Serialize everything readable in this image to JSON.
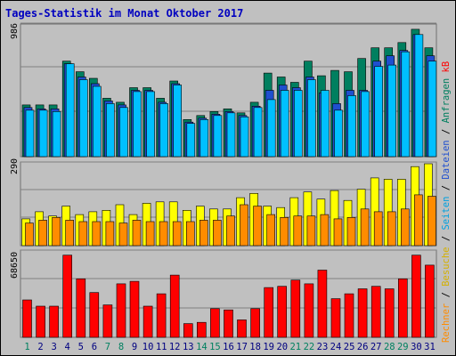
{
  "chart_data": {
    "type": "bar",
    "title": "Tages-Statistik im Monat Oktober 2017",
    "days": [
      "1",
      "2",
      "3",
      "4",
      "5",
      "6",
      "7",
      "8",
      "9",
      "10",
      "11",
      "12",
      "13",
      "14",
      "15",
      "16",
      "17",
      "18",
      "19",
      "20",
      "21",
      "22",
      "23",
      "24",
      "25",
      "26",
      "27",
      "28",
      "29",
      "30",
      "31"
    ],
    "weekend_days": [
      "1",
      "7",
      "8",
      "14",
      "15",
      "21",
      "22",
      "28",
      "29"
    ],
    "panels": [
      {
        "max_label": "986",
        "ylim": [
          0,
          986
        ],
        "series": [
          {
            "name": "Anfragen",
            "color": "#007f5f",
            "values": [
              390,
              390,
              390,
              720,
              640,
              590,
              440,
              410,
              520,
              520,
              440,
              570,
              280,
              310,
              340,
              360,
              330,
              410,
              630,
              600,
              560,
              720,
              610,
              650,
              640,
              740,
              820,
              820,
              860,
              960,
              820
            ]
          },
          {
            "name": "Dateien",
            "color": "#1f4fcf",
            "values": [
              370,
              360,
              360,
              700,
              600,
              550,
              420,
              390,
              500,
              500,
              410,
              550,
              260,
              290,
              320,
              340,
              310,
              380,
              500,
              540,
              520,
              600,
              480,
              400,
              500,
              500,
              720,
              760,
              800,
              920,
              760
            ]
          },
          {
            "name": "Seiten",
            "color": "#00c0ff",
            "values": [
              350,
              350,
              340,
              700,
              580,
              530,
              400,
              370,
              490,
              490,
              400,
              540,
              250,
              280,
              310,
              330,
              300,
              370,
              430,
              500,
              500,
              580,
              500,
              350,
              460,
              490,
              680,
              690,
              790,
              920,
              720
            ]
          }
        ]
      },
      {
        "max_label": "290",
        "ylim": [
          0,
          290
        ],
        "series": [
          {
            "name": "Besuche",
            "color": "#ffff00",
            "values": [
              95,
              120,
              105,
              140,
              110,
              120,
              125,
              145,
              110,
              150,
              155,
              155,
              125,
              140,
              130,
              130,
              170,
              185,
              140,
              135,
              170,
              190,
              165,
              195,
              160,
              200,
              240,
              235,
              235,
              280,
              290
            ]
          },
          {
            "name": "Rechner",
            "color": "#ff8c00",
            "values": [
              80,
              90,
              100,
              90,
              85,
              85,
              85,
              80,
              90,
              85,
              85,
              85,
              85,
              90,
              90,
              105,
              145,
              140,
              110,
              100,
              105,
              105,
              110,
              95,
              100,
              130,
              120,
              120,
              130,
              180,
              175
            ]
          }
        ]
      },
      {
        "max_label": "68650",
        "ylim": [
          0,
          68650
        ],
        "series": [
          {
            "name": "kB",
            "color": "#ff0000",
            "values": [
              30000,
              25000,
              25000,
              66000,
              47000,
              36000,
              26000,
              43000,
              45000,
              25000,
              35000,
              50000,
              11000,
              12000,
              23000,
              22000,
              14000,
              23000,
              40000,
              41000,
              46000,
              43000,
              54000,
              31000,
              35000,
              39000,
              41000,
              39000,
              47000,
              66000,
              58000
            ]
          }
        ]
      }
    ],
    "legend": [
      {
        "label": "Rechner",
        "color": "#ff8c00"
      },
      {
        "label": " / ",
        "color": "#000000"
      },
      {
        "label": "Besuche",
        "color": "#d4b000"
      },
      {
        "label": " / ",
        "color": "#000000"
      },
      {
        "label": "Seiten",
        "color": "#00a0e0"
      },
      {
        "label": " / ",
        "color": "#000000"
      },
      {
        "label": "Dateien",
        "color": "#1f4fcf"
      },
      {
        "label": " / ",
        "color": "#000000"
      },
      {
        "label": "Anfragen",
        "color": "#007f5f"
      },
      {
        "label": "     ",
        "color": "#000000"
      },
      {
        "label": "kB",
        "color": "#ff0000"
      }
    ]
  }
}
